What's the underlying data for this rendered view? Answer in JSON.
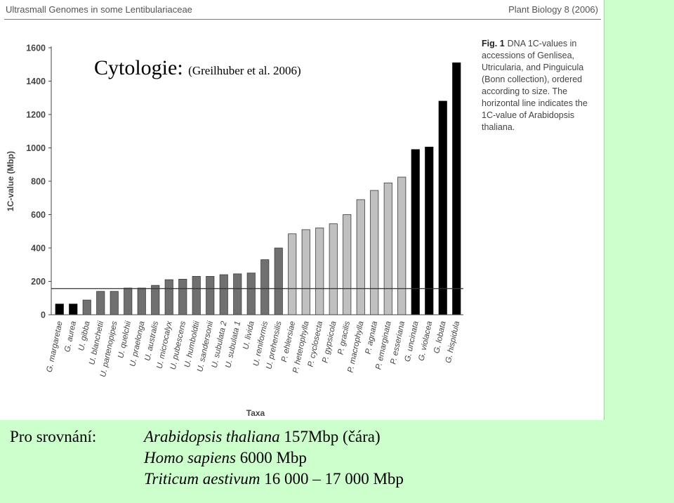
{
  "header": {
    "left": "Ultrasmall Genomes in some Lentibulariaceae",
    "right": "Plant Biology 8 (2006)"
  },
  "slide_title": {
    "main": "Cytologie:",
    "sub": "(Greilhuber et al. 2006)"
  },
  "caption": {
    "label": "Fig. 1",
    "text": "DNA 1C-values in accessions of Genlisea, Utricularia, and Pinguicula (Bonn collection), ordered according to size. The horizontal line indicates the 1C-value of Arabidopsis thaliana."
  },
  "chart_data": {
    "type": "bar",
    "xlabel": "Taxa",
    "ylabel": "1C-value (Mbp)",
    "ylim": [
      0,
      1600
    ],
    "yticks": [
      "0",
      "200",
      "400",
      "600",
      "800",
      "1000",
      "1200",
      "1400",
      "1600"
    ],
    "reference_line": 157,
    "categories": [
      "G. margaretae",
      "G. aurea",
      "U. gibba",
      "U. blanchetii",
      "U. partenopipes",
      "U. quelchii",
      "U. praelonga",
      "U. australis",
      "U. microcalyx",
      "U. pubescens",
      "U. humboldtii",
      "U. sandersonii",
      "U. subulata 2",
      "U. subulata 1",
      "U. livida",
      "U. reniformis",
      "U. prehensilis",
      "P. ehlersiae",
      "P. heterophylla",
      "P. cyclosecta",
      "P. gypsicola",
      "P. gracilis",
      "P. macrophylla",
      "P. agnata",
      "P. emarginata",
      "P. esseriana",
      "G. uncinata",
      "G. violacea",
      "G. lobata",
      "G. hispidula"
    ],
    "values": [
      64,
      64,
      88,
      140,
      140,
      160,
      160,
      176,
      210,
      213,
      230,
      230,
      240,
      245,
      250,
      330,
      400,
      485,
      510,
      520,
      545,
      600,
      690,
      745,
      790,
      825,
      990,
      1005,
      1280,
      1510
    ],
    "bar_colors": [
      "#000000",
      "#000000",
      "#707070",
      "#707070",
      "#707070",
      "#707070",
      "#707070",
      "#707070",
      "#707070",
      "#707070",
      "#707070",
      "#707070",
      "#707070",
      "#707070",
      "#707070",
      "#707070",
      "#707070",
      "#c0c0c0",
      "#c0c0c0",
      "#c0c0c0",
      "#c0c0c0",
      "#c0c0c0",
      "#c0c0c0",
      "#c0c0c0",
      "#c0c0c0",
      "#c0c0c0",
      "#000000",
      "#000000",
      "#000000",
      "#000000"
    ]
  },
  "comparison": {
    "label": "Pro srovnání:",
    "rows": [
      {
        "species": "Arabidopsis thaliana",
        "value": "157Mbp (čára)"
      },
      {
        "species": "Homo sapiens",
        "value": "6000 Mbp"
      },
      {
        "species": "Triticum aestivum",
        "value": "16 000 – 17 000 Mbp"
      }
    ]
  }
}
